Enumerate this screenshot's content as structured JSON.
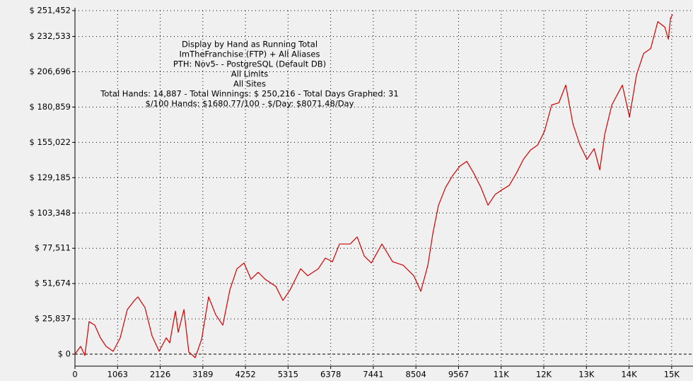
{
  "chart_data": {
    "type": "line",
    "annotations": [
      "Display by Hand as Running Total",
      "ImTheFranchise (FTP) + All Aliases",
      "PTH: Nov5- - PostgreSQL (Default DB)",
      "All Limits",
      "All Sites",
      "Total Hands: 14,887 - Total Winnings: $ 250,216 - Total Days Graphed: 31",
      "$/100 Hands: $1680.77/100 - $/Day: $8071.48/Day"
    ],
    "color": "#d40000",
    "grid": true,
    "xlim": [
      0,
      15414
    ],
    "ylim": [
      -8785,
      251452
    ],
    "xticks": [
      0,
      1063,
      2126,
      3189,
      4252,
      5315,
      6378,
      7441,
      8504,
      9567,
      {
        "value": 10630,
        "label": "11K"
      },
      {
        "value": 11693,
        "label": "12K"
      },
      {
        "value": 12756,
        "label": "13K"
      },
      {
        "value": 13819,
        "label": "14K"
      },
      {
        "value": 14882,
        "label": "15K"
      }
    ],
    "yticks": [
      {
        "value": 0,
        "label": "$ 0"
      },
      {
        "value": 25837,
        "label": "$ 25,837"
      },
      {
        "value": 51674,
        "label": "$ 51,674"
      },
      {
        "value": 77511,
        "label": "$ 77,511"
      },
      {
        "value": 103348,
        "label": "$ 103,348"
      },
      {
        "value": 129185,
        "label": "$ 129,185"
      },
      {
        "value": 155022,
        "label": "$ 155,022"
      },
      {
        "value": 180859,
        "label": "$ 180,859"
      },
      {
        "value": 206696,
        "label": "$ 206,696"
      },
      {
        "value": 232533,
        "label": "$ 232,533"
      },
      {
        "value": 251452,
        "label": "$ 251,452"
      }
    ],
    "x": [
      0,
      141,
      247,
      353,
      494,
      635,
      776,
      953,
      1129,
      1305,
      1482,
      1570,
      1746,
      1923,
      2099,
      2276,
      2364,
      2505,
      2575,
      2717,
      2840,
      2999,
      3158,
      3334,
      3510,
      3687,
      3863,
      4040,
      4216,
      4392,
      4569,
      4745,
      5010,
      5186,
      5363,
      5627,
      5804,
      6068,
      6245,
      6421,
      6597,
      6862,
      7038,
      7215,
      7391,
      7656,
      7920,
      8185,
      8450,
      8626,
      8802,
      8926,
      9067,
      9243,
      9420,
      9596,
      9773,
      9949,
      10125,
      10302,
      10478,
      10655,
      10831,
      11007,
      11184,
      11360,
      11537,
      11713,
      11889,
      12066,
      12242,
      12419,
      12595,
      12771,
      12948,
      13089,
      13212,
      13389,
      13653,
      13830,
      14006,
      14183,
      14359,
      14535,
      14712,
      14800,
      14853,
      14906
    ],
    "values": [
      0,
      5700,
      -1000,
      23800,
      21200,
      11900,
      5700,
      2100,
      11900,
      32600,
      39300,
      41900,
      34100,
      13400,
      2100,
      11900,
      8300,
      31500,
      16000,
      32600,
      1550,
      -2600,
      10900,
      41900,
      28900,
      21200,
      47000,
      62500,
      66700,
      54800,
      59900,
      54800,
      49600,
      39300,
      47000,
      62500,
      57400,
      62500,
      70300,
      67700,
      80600,
      80600,
      85800,
      71800,
      66700,
      80600,
      67700,
      65100,
      57400,
      46000,
      65100,
      88400,
      109000,
      122000,
      130700,
      137500,
      141100,
      132300,
      122000,
      109000,
      116800,
      120400,
      123500,
      132300,
      142600,
      149300,
      153000,
      163300,
      182400,
      184000,
      196900,
      168500,
      153000,
      142600,
      150400,
      134900,
      160700,
      182400,
      196900,
      173600,
      204600,
      220100,
      223700,
      243400,
      239300,
      230500,
      246000,
      248600
    ]
  }
}
